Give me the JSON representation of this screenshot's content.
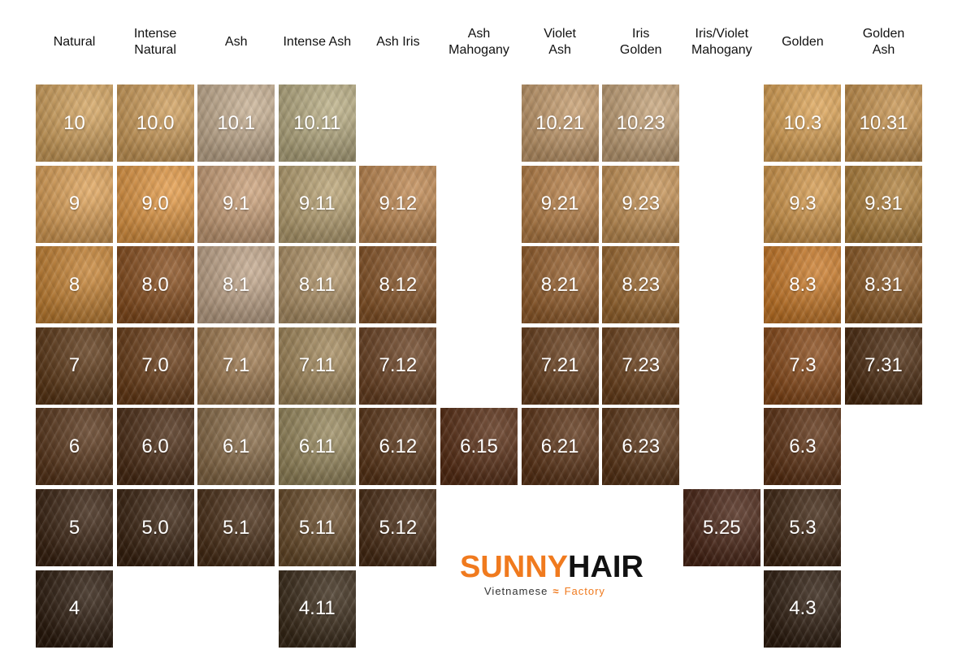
{
  "columns": [
    {
      "id": "natural",
      "label": "Natural",
      "color_hint": "natural"
    },
    {
      "id": "intense_natural",
      "label": "Intense\nNatural"
    },
    {
      "id": "ash",
      "label": "Ash"
    },
    {
      "id": "intense_ash",
      "label": "Intense Ash"
    },
    {
      "id": "ash_iris",
      "label": "Ash Iris"
    },
    {
      "id": "ash_mahogany",
      "label": "Ash\nMahogany"
    },
    {
      "id": "violet_ash",
      "label": "Violet\nAsh"
    },
    {
      "id": "iris_golden",
      "label": "Iris\nGolden"
    },
    {
      "id": "iris_violet_mahogany",
      "label": "Iris/Violet\nMahogany"
    },
    {
      "id": "golden",
      "label": "Golden"
    },
    {
      "id": "golden_ash",
      "label": "Golden\nAsh"
    }
  ],
  "swatches": [
    {
      "col": 0,
      "level": 10,
      "code": "10",
      "color": "#d5a45e"
    },
    {
      "col": 1,
      "level": 10,
      "code": "10.0",
      "color": "#d2a05c"
    },
    {
      "col": 2,
      "level": 10,
      "code": "10.1",
      "color": "#c9b193"
    },
    {
      "col": 3,
      "level": 10,
      "code": "10.11",
      "color": "#bbaf84"
    },
    {
      "col": 6,
      "level": 10,
      "code": "10.21",
      "color": "#c89e6e"
    },
    {
      "col": 7,
      "level": 10,
      "code": "10.23",
      "color": "#c8a57a"
    },
    {
      "col": 9,
      "level": 10,
      "code": "10.3",
      "color": "#dfa556"
    },
    {
      "col": 10,
      "level": 10,
      "code": "10.31",
      "color": "#c9944e"
    },
    {
      "col": 0,
      "level": 9,
      "code": "9",
      "color": "#e0a358"
    },
    {
      "col": 1,
      "level": 9,
      "code": "9.0",
      "color": "#e59a45"
    },
    {
      "col": 2,
      "level": 9,
      "code": "9.1",
      "color": "#cda27a"
    },
    {
      "col": 3,
      "level": 9,
      "code": "9.11",
      "color": "#bba474"
    },
    {
      "col": 4,
      "level": 9,
      "code": "9.12",
      "color": "#c28a52"
    },
    {
      "col": 6,
      "level": 9,
      "code": "9.21",
      "color": "#bb8248"
    },
    {
      "col": 7,
      "level": 9,
      "code": "9.23",
      "color": "#c89456"
    },
    {
      "col": 9,
      "level": 9,
      "code": "9.3",
      "color": "#d69a4c"
    },
    {
      "col": 10,
      "level": 9,
      "code": "9.31",
      "color": "#b3823c"
    },
    {
      "col": 0,
      "level": 8,
      "code": "8",
      "color": "#c78333"
    },
    {
      "col": 1,
      "level": 8,
      "code": "8.0",
      "color": "#8a4f1e"
    },
    {
      "col": 2,
      "level": 8,
      "code": "8.1",
      "color": "#c4a88c"
    },
    {
      "col": 3,
      "level": 8,
      "code": "8.11",
      "color": "#b4966a"
    },
    {
      "col": 4,
      "level": 8,
      "code": "8.12",
      "color": "#8a5628"
    },
    {
      "col": 6,
      "level": 8,
      "code": "8.21",
      "color": "#98602c"
    },
    {
      "col": 7,
      "level": 8,
      "code": "8.23",
      "color": "#9f6a30"
    },
    {
      "col": 9,
      "level": 8,
      "code": "8.3",
      "color": "#cc7b28"
    },
    {
      "col": 10,
      "level": 8,
      "code": "8.31",
      "color": "#8e5a24"
    },
    {
      "col": 0,
      "level": 7,
      "code": "7",
      "color": "#5e3816"
    },
    {
      "col": 1,
      "level": 7,
      "code": "7.0",
      "color": "#6b3d17"
    },
    {
      "col": 2,
      "level": 7,
      "code": "7.1",
      "color": "#a17b50"
    },
    {
      "col": 3,
      "level": 7,
      "code": "7.11",
      "color": "#a58a5c"
    },
    {
      "col": 4,
      "level": 7,
      "code": "7.12",
      "color": "#6c4222"
    },
    {
      "col": 6,
      "level": 7,
      "code": "7.21",
      "color": "#6a3f1c"
    },
    {
      "col": 7,
      "level": 7,
      "code": "7.23",
      "color": "#6e421c"
    },
    {
      "col": 9,
      "level": 7,
      "code": "7.3",
      "color": "#8a4a18"
    },
    {
      "col": 10,
      "level": 7,
      "code": "7.31",
      "color": "#4c2a0e"
    },
    {
      "col": 0,
      "level": 6,
      "code": "6",
      "color": "#5a361a"
    },
    {
      "col": 1,
      "level": 6,
      "code": "6.0",
      "color": "#4c2c14"
    },
    {
      "col": 2,
      "level": 6,
      "code": "6.1",
      "color": "#8a6c48"
    },
    {
      "col": 3,
      "level": 6,
      "code": "6.11",
      "color": "#9a8a5e"
    },
    {
      "col": 4,
      "level": 6,
      "code": "6.12",
      "color": "#5c3618"
    },
    {
      "col": 5,
      "level": 6,
      "code": "6.15",
      "color": "#5a2e14"
    },
    {
      "col": 6,
      "level": 6,
      "code": "6.21",
      "color": "#5e3416"
    },
    {
      "col": 7,
      "level": 6,
      "code": "6.23",
      "color": "#5c3516"
    },
    {
      "col": 9,
      "level": 6,
      "code": "6.3",
      "color": "#5e3112"
    },
    {
      "col": 0,
      "level": 5,
      "code": "5",
      "color": "#3a2210"
    },
    {
      "col": 1,
      "level": 5,
      "code": "5.0",
      "color": "#3a220f"
    },
    {
      "col": 2,
      "level": 5,
      "code": "5.1",
      "color": "#4a2e16"
    },
    {
      "col": 3,
      "level": 5,
      "code": "5.11",
      "color": "#6a4c2a"
    },
    {
      "col": 4,
      "level": 5,
      "code": "5.12",
      "color": "#4a2c14"
    },
    {
      "col": 8,
      "level": 5,
      "code": "5.25",
      "color": "#4a2414"
    },
    {
      "col": 9,
      "level": 5,
      "code": "5.3",
      "color": "#3e2410"
    },
    {
      "col": 0,
      "level": 4,
      "code": "4",
      "color": "#2c1a0c"
    },
    {
      "col": 3,
      "level": 4,
      "code": "4.11",
      "color": "#3a2a18"
    },
    {
      "col": 9,
      "level": 4,
      "code": "4.3",
      "color": "#2e1c0e"
    }
  ],
  "logo": {
    "brand_part1": "SUNNY",
    "brand_part2": "HAIR",
    "tagline_left": "Vietnamese",
    "tagline_right": "Factory",
    "wave_icon": "wave-icon",
    "accent_color": "#f07a1e"
  }
}
